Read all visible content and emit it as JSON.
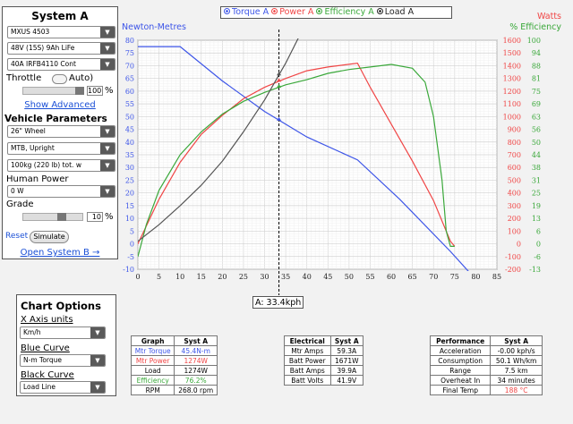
{
  "system": {
    "title": "System A",
    "motor": "MXUS 4503",
    "battery": "48V (15S) 9Ah LiFe",
    "controller": "40A IRFB4110 Cont",
    "throttle_label": "Throttle",
    "auto_label": "Auto)",
    "throttle_value": "100",
    "percent": "%",
    "show_advanced": "Show Advanced",
    "vehicle_params": "Vehicle Parameters",
    "wheel": "26\" Wheel",
    "bike_type": "MTB, Upright",
    "weight": "100kg (220 lb) tot. w",
    "human_power_label": "Human Power",
    "human_power": "0 W",
    "grade_label": "Grade",
    "grade_value": "10",
    "reset_label": "Reset",
    "simulate_label": "Simulate",
    "open_system_b": "Open System B →"
  },
  "legend": {
    "torque": "Torque A",
    "power": "Power A",
    "efficiency": "Efficiency A",
    "load": "Load A"
  },
  "axes": {
    "left_title": "Newton-Metres",
    "right_title_watts": "Watts",
    "right_title_eff": "% Efficiency",
    "cursor_label": "A: 33.4kph"
  },
  "colors": {
    "torque": "#3d55e8",
    "power": "#f04545",
    "efficiency": "#3aa83a",
    "load": "#555555"
  },
  "chart_data": {
    "type": "line",
    "x_ticks": [
      "0",
      "5",
      "10",
      "15",
      "20",
      "25",
      "30",
      "35",
      "40",
      "45",
      "50",
      "55",
      "60",
      "65",
      "70",
      "75",
      "80",
      "85"
    ],
    "xlim": [
      0,
      85
    ],
    "left_ticks": [
      "80",
      "75",
      "70",
      "65",
      "60",
      "55",
      "50",
      "45",
      "40",
      "35",
      "30",
      "25",
      "20",
      "15",
      "10",
      "5",
      "0",
      "-5",
      "-10"
    ],
    "ylim_left": [
      -10,
      80
    ],
    "watts_ticks": [
      "1600",
      "1500",
      "1400",
      "1300",
      "1200",
      "1100",
      "1000",
      "900",
      "800",
      "700",
      "600",
      "500",
      "400",
      "300",
      "200",
      "100",
      "0",
      "-100",
      "-200"
    ],
    "eff_ticks": [
      "100",
      "94",
      "88",
      "81",
      "75",
      "69",
      "63",
      "56",
      "50",
      "44",
      "38",
      "31",
      "25",
      "19",
      "13",
      "6",
      "0",
      "-6",
      "-13"
    ],
    "series": [
      {
        "name": "Torque A",
        "axis": "nm",
        "x": [
          0,
          10,
          20,
          30,
          40,
          52,
          62,
          74,
          80
        ],
        "y": [
          77.5,
          77.5,
          64,
          52,
          42,
          33,
          17.5,
          -3,
          -14
        ]
      },
      {
        "name": "Power A",
        "axis": "w",
        "x": [
          0,
          5,
          10,
          15,
          20,
          25,
          30,
          35,
          40,
          45,
          52,
          55,
          60,
          65,
          70,
          74,
          75
        ],
        "y": [
          0,
          350,
          640,
          860,
          1010,
          1140,
          1230,
          1300,
          1360,
          1390,
          1420,
          1230,
          940,
          650,
          340,
          20,
          -20
        ]
      },
      {
        "name": "Efficiency A",
        "axis": "w",
        "x": [
          0,
          2,
          5,
          10,
          15,
          20,
          25,
          30,
          35,
          40,
          45,
          50,
          55,
          60,
          65,
          68,
          70,
          72,
          73,
          74,
          75
        ],
        "y": [
          -100,
          150,
          420,
          700,
          880,
          1020,
          1120,
          1190,
          1250,
          1290,
          1340,
          1370,
          1390,
          1410,
          1380,
          1270,
          1000,
          500,
          100,
          -20,
          -20
        ]
      },
      {
        "name": "Load A",
        "axis": "w",
        "x": [
          0,
          5,
          10,
          15,
          20,
          25,
          30,
          35,
          40
        ],
        "y": [
          20,
          150,
          300,
          460,
          650,
          880,
          1130,
          1420,
          1750
        ]
      }
    ],
    "cursor_x": 33.4,
    "grid": true
  },
  "chart_options": {
    "title": "Chart Options",
    "x_axis_label": "X Axis units",
    "x_axis_value": "Km/h",
    "blue_curve_label": "Blue Curve",
    "blue_curve_value": "N-m Torque",
    "black_curve_label": "Black Curve",
    "black_curve_value": "Load Line"
  },
  "graph_table": {
    "headers": [
      "Graph",
      "Syst A"
    ],
    "rows": [
      [
        "Mtr Torque",
        "45.4N-m"
      ],
      [
        "Mtr Power",
        "1274W"
      ],
      [
        "Load",
        "1274W"
      ],
      [
        "Efficiency",
        "76.2%"
      ],
      [
        "RPM",
        "268.0 rpm"
      ]
    ]
  },
  "electrical_table": {
    "headers": [
      "Electrical",
      "Syst A"
    ],
    "rows": [
      [
        "Mtr Amps",
        "59.3A"
      ],
      [
        "Batt Power",
        "1671W"
      ],
      [
        "Batt Amps",
        "39.9A"
      ],
      [
        "Batt Volts",
        "41.9V"
      ]
    ]
  },
  "performance_table": {
    "headers": [
      "Performance",
      "Syst A"
    ],
    "rows": [
      [
        "Acceleration",
        "-0.00 kph/s"
      ],
      [
        "Consumption",
        "50.1 Wh/km"
      ],
      [
        "Range",
        "7.5 km"
      ],
      [
        "Overheat In",
        "34 minutes"
      ],
      [
        "Final Temp",
        "188 °C"
      ]
    ]
  }
}
